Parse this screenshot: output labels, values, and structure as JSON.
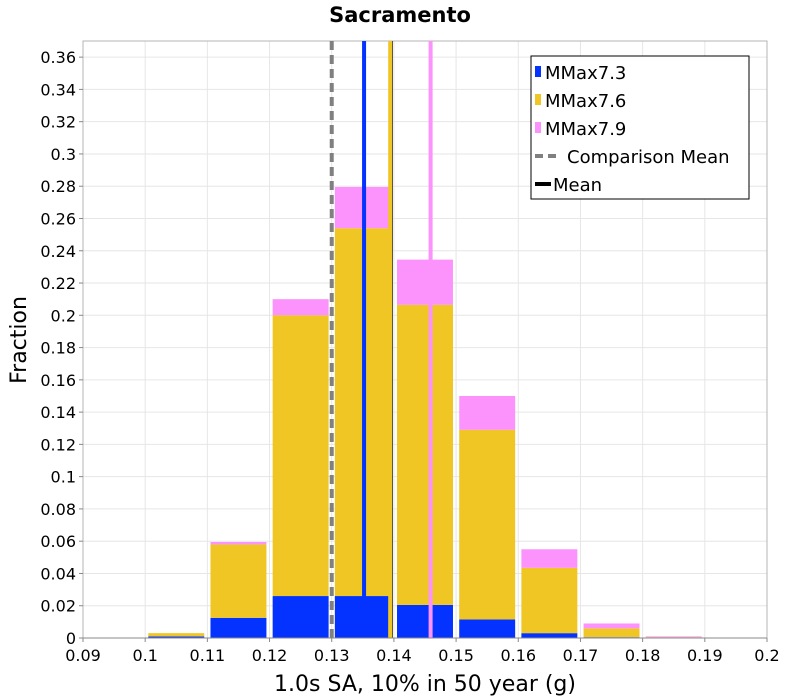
{
  "chart_data": {
    "type": "bar",
    "title": "Sacramento",
    "xlabel": "1.0s SA, 10% in 50 year (g)",
    "ylabel": "Fraction",
    "xlim": [
      0.09,
      0.2
    ],
    "ylim": [
      0,
      0.37
    ],
    "x_ticks": [
      "0.09",
      "0.1",
      "0.11",
      "0.12",
      "0.13",
      "0.14",
      "0.15",
      "0.16",
      "0.17",
      "0.18",
      "0.19",
      "0.2"
    ],
    "y_ticks": [
      "0",
      "0.02",
      "0.04",
      "0.06",
      "0.08",
      "0.1",
      "0.12",
      "0.14",
      "0.16",
      "0.18",
      "0.2",
      "0.22",
      "0.24",
      "0.26",
      "0.28",
      "0.3",
      "0.32",
      "0.34",
      "0.36"
    ],
    "grid": true,
    "stacked": true,
    "bin_width": 0.01,
    "bin_starts": [
      0.1,
      0.11,
      0.12,
      0.13,
      0.14,
      0.15,
      0.16,
      0.17,
      0.18
    ],
    "series": [
      {
        "name": "MMax7.3",
        "color": "#0433ff",
        "values": [
          0.001,
          0.0125,
          0.026,
          0.026,
          0.0205,
          0.0115,
          0.003,
          0.0005,
          0.0
        ]
      },
      {
        "name": "MMax7.6",
        "color": "#f0c624",
        "values": [
          0.002,
          0.0455,
          0.174,
          0.228,
          0.186,
          0.1175,
          0.0405,
          0.0055,
          0.0005
        ]
      },
      {
        "name": "MMax7.9",
        "color": "#fc92fb",
        "values": [
          0.0,
          0.0015,
          0.01,
          0.0255,
          0.028,
          0.021,
          0.0115,
          0.003,
          0.0005
        ]
      }
    ],
    "vertical_lines": [
      {
        "name": "Comparison Mean",
        "x": 0.13,
        "style": "dashed",
        "color": "#808080"
      },
      {
        "name": "Mean",
        "x": 0.1395,
        "style": "solid",
        "color": "#000000"
      },
      {
        "name": "MMax7.3 mean",
        "x": 0.1352,
        "style": "solid",
        "color": "#0433ff"
      },
      {
        "name": "MMax7.6 mean",
        "x": 0.1394,
        "style": "solid",
        "color": "#f0c624"
      },
      {
        "name": "MMax7.9 mean",
        "x": 0.1459,
        "style": "solid",
        "color": "#fc92fb"
      }
    ],
    "legend": {
      "position": "top-right",
      "entries": [
        {
          "label": "MMax7.3",
          "kind": "swatch",
          "color": "#0433ff"
        },
        {
          "label": "MMax7.6",
          "kind": "swatch",
          "color": "#f0c624"
        },
        {
          "label": "MMax7.9",
          "kind": "swatch",
          "color": "#fc92fb"
        },
        {
          "label": "Comparison Mean",
          "kind": "dashed-line",
          "color": "#808080"
        },
        {
          "label": "Mean",
          "kind": "solid-line",
          "color": "#000000"
        }
      ]
    }
  }
}
